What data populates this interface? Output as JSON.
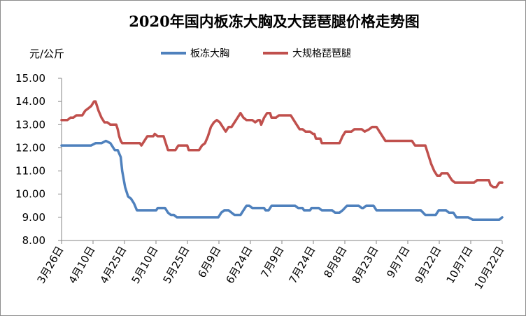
{
  "chart_data": {
    "type": "line",
    "title": "2020年国内板冻大胸及大琵琶腿价格走势图",
    "ylabel": "元/公斤",
    "xlabel": "",
    "ylim": [
      8.0,
      15.0
    ],
    "yticks": [
      "8.00",
      "9.00",
      "10.00",
      "11.00",
      "12.00",
      "13.00",
      "14.00",
      "15.00"
    ],
    "categories": [
      "3月26日",
      "4月10日",
      "4月25日",
      "5月10日",
      "5月25日",
      "6月9日",
      "6月24日",
      "7月9日",
      "7月24日",
      "8月8日",
      "8月23日",
      "9月7日",
      "9月22日",
      "10月7日",
      "10月22日"
    ],
    "grid": false,
    "legend_position": "top",
    "series": [
      {
        "name": "板冻大胸",
        "color": "#4f81bd",
        "points": [
          [
            0,
            12.1
          ],
          [
            20,
            12.1
          ],
          [
            23,
            12.2
          ],
          [
            27,
            12.2
          ],
          [
            30,
            12.3
          ],
          [
            33,
            12.2
          ],
          [
            36,
            11.9
          ],
          [
            38,
            11.9
          ],
          [
            40,
            11.6
          ],
          [
            41,
            11.0
          ],
          [
            43,
            10.3
          ],
          [
            45,
            9.9
          ],
          [
            47,
            9.8
          ],
          [
            49,
            9.6
          ],
          [
            51,
            9.3
          ],
          [
            64,
            9.3
          ],
          [
            65,
            9.4
          ],
          [
            70,
            9.4
          ],
          [
            72,
            9.2
          ],
          [
            74,
            9.1
          ],
          [
            76,
            9.1
          ],
          [
            78,
            9.0
          ],
          [
            106,
            9.0
          ],
          [
            108,
            9.2
          ],
          [
            110,
            9.3
          ],
          [
            113,
            9.3
          ],
          [
            115,
            9.2
          ],
          [
            117,
            9.1
          ],
          [
            121,
            9.1
          ],
          [
            123,
            9.3
          ],
          [
            125,
            9.5
          ],
          [
            127,
            9.5
          ],
          [
            129,
            9.4
          ],
          [
            137,
            9.4
          ],
          [
            138,
            9.3
          ],
          [
            140,
            9.3
          ],
          [
            142,
            9.5
          ],
          [
            158,
            9.5
          ],
          [
            160,
            9.4
          ],
          [
            163,
            9.4
          ],
          [
            164,
            9.3
          ],
          [
            168,
            9.3
          ],
          [
            169,
            9.4
          ],
          [
            174,
            9.4
          ],
          [
            176,
            9.3
          ],
          [
            183,
            9.3
          ],
          [
            185,
            9.2
          ],
          [
            188,
            9.2
          ],
          [
            190,
            9.3
          ],
          [
            193,
            9.5
          ],
          [
            201,
            9.5
          ],
          [
            203,
            9.4
          ],
          [
            204,
            9.4
          ],
          [
            206,
            9.5
          ],
          [
            211,
            9.5
          ],
          [
            213,
            9.3
          ],
          [
            243,
            9.3
          ],
          [
            246,
            9.1
          ],
          [
            253,
            9.1
          ],
          [
            255,
            9.3
          ],
          [
            260,
            9.3
          ],
          [
            262,
            9.2
          ],
          [
            265,
            9.2
          ],
          [
            267,
            9.0
          ],
          [
            275,
            9.0
          ],
          [
            278,
            8.9
          ],
          [
            296,
            8.9
          ],
          [
            298,
            9.0
          ]
        ]
      },
      {
        "name": "大规格琵琶腿",
        "color": "#c0504d",
        "points": [
          [
            0,
            13.2
          ],
          [
            4,
            13.2
          ],
          [
            6,
            13.3
          ],
          [
            8,
            13.3
          ],
          [
            10,
            13.4
          ],
          [
            14,
            13.4
          ],
          [
            16,
            13.6
          ],
          [
            18,
            13.7
          ],
          [
            20,
            13.8
          ],
          [
            22,
            14.0
          ],
          [
            23,
            14.0
          ],
          [
            25,
            13.6
          ],
          [
            27,
            13.3
          ],
          [
            29,
            13.1
          ],
          [
            31,
            13.1
          ],
          [
            33,
            13.0
          ],
          [
            37,
            13.0
          ],
          [
            38,
            12.8
          ],
          [
            39,
            12.5
          ],
          [
            40,
            12.3
          ],
          [
            41,
            12.2
          ],
          [
            51,
            12.2
          ],
          [
            53,
            12.2
          ],
          [
            54,
            12.1
          ],
          [
            56,
            12.3
          ],
          [
            58,
            12.5
          ],
          [
            62,
            12.5
          ],
          [
            63,
            12.6
          ],
          [
            65,
            12.5
          ],
          [
            69,
            12.5
          ],
          [
            70,
            12.3
          ],
          [
            71,
            12.1
          ],
          [
            72,
            11.9
          ],
          [
            77,
            11.9
          ],
          [
            79,
            12.1
          ],
          [
            85,
            12.1
          ],
          [
            86,
            11.9
          ],
          [
            93,
            11.9
          ],
          [
            95,
            12.1
          ],
          [
            97,
            12.2
          ],
          [
            99,
            12.5
          ],
          [
            101,
            12.9
          ],
          [
            103,
            13.1
          ],
          [
            105,
            13.2
          ],
          [
            107,
            13.1
          ],
          [
            109,
            12.9
          ],
          [
            111,
            12.7
          ],
          [
            113,
            12.9
          ],
          [
            115,
            12.9
          ],
          [
            117,
            13.1
          ],
          [
            119,
            13.3
          ],
          [
            121,
            13.5
          ],
          [
            123,
            13.3
          ],
          [
            125,
            13.2
          ],
          [
            127,
            13.2
          ],
          [
            129,
            13.2
          ],
          [
            131,
            13.1
          ],
          [
            133,
            13.2
          ],
          [
            134,
            13.2
          ],
          [
            135,
            13.0
          ],
          [
            137,
            13.3
          ],
          [
            139,
            13.5
          ],
          [
            141,
            13.5
          ],
          [
            142,
            13.3
          ],
          [
            145,
            13.3
          ],
          [
            147,
            13.4
          ],
          [
            155,
            13.4
          ],
          [
            156,
            13.3
          ],
          [
            157,
            13.2
          ],
          [
            159,
            13.0
          ],
          [
            161,
            12.8
          ],
          [
            163,
            12.8
          ],
          [
            165,
            12.7
          ],
          [
            168,
            12.7
          ],
          [
            170,
            12.6
          ],
          [
            171,
            12.6
          ],
          [
            172,
            12.4
          ],
          [
            175,
            12.4
          ],
          [
            176,
            12.2
          ],
          [
            188,
            12.2
          ],
          [
            190,
            12.5
          ],
          [
            192,
            12.7
          ],
          [
            196,
            12.7
          ],
          [
            198,
            12.8
          ],
          [
            203,
            12.8
          ],
          [
            205,
            12.7
          ],
          [
            208,
            12.8
          ],
          [
            210,
            12.9
          ],
          [
            213,
            12.9
          ],
          [
            215,
            12.7
          ],
          [
            217,
            12.5
          ],
          [
            219,
            12.3
          ],
          [
            237,
            12.3
          ],
          [
            239,
            12.1
          ],
          [
            246,
            12.1
          ],
          [
            248,
            11.7
          ],
          [
            250,
            11.3
          ],
          [
            252,
            11.0
          ],
          [
            254,
            10.8
          ],
          [
            256,
            10.8
          ],
          [
            257,
            10.9
          ],
          [
            261,
            10.9
          ],
          [
            262,
            10.8
          ],
          [
            264,
            10.6
          ],
          [
            266,
            10.5
          ],
          [
            279,
            10.5
          ],
          [
            281,
            10.6
          ],
          [
            289,
            10.6
          ],
          [
            290,
            10.4
          ],
          [
            292,
            10.3
          ],
          [
            294,
            10.3
          ],
          [
            296,
            10.5
          ],
          [
            298,
            10.5
          ]
        ]
      }
    ]
  }
}
